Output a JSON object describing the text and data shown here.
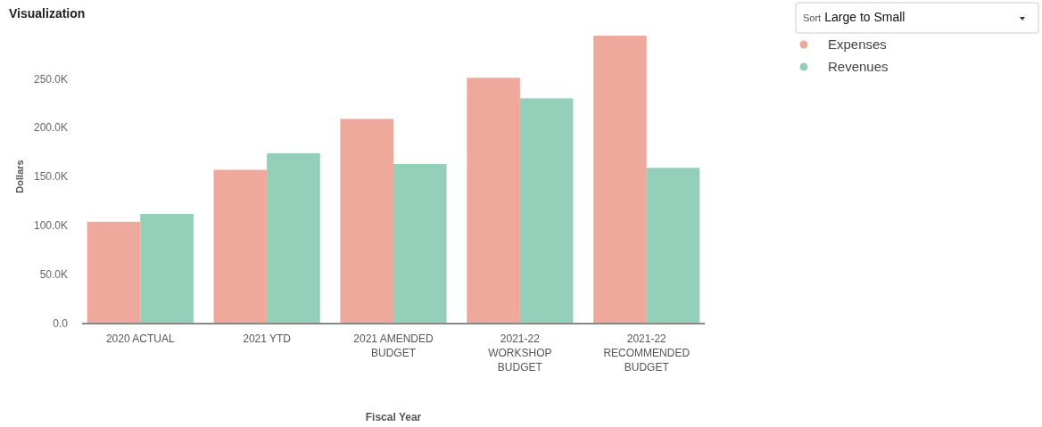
{
  "chart_data": {
    "type": "bar",
    "title": "Visualization",
    "xlabel": "Fiscal Year",
    "ylabel": "Dollars",
    "categories": [
      "2020 ACTUAL",
      "2021 YTD",
      "2021 AMENDED BUDGET",
      "2021-22 WORKSHOP BUDGET",
      "2021-22 RECOMMENDED BUDGET"
    ],
    "series": [
      {
        "name": "Expenses",
        "color": "#efa99c",
        "values": [
          104000,
          157000,
          209000,
          251000,
          294000
        ]
      },
      {
        "name": "Revenues",
        "color": "#94cfba",
        "values": [
          112000,
          174000,
          163000,
          230000,
          159000
        ]
      }
    ],
    "yticks": [
      {
        "value": 0,
        "label": "0.0"
      },
      {
        "value": 50000,
        "label": "50.0K"
      },
      {
        "value": 100000,
        "label": "100.0K"
      },
      {
        "value": 150000,
        "label": "150.0K"
      },
      {
        "value": 200000,
        "label": "200.0K"
      },
      {
        "value": 250000,
        "label": "250.0K"
      }
    ],
    "ylim": [
      0,
      294000
    ],
    "legend": "top right",
    "annotations": [
      "Sort",
      "Large to Small"
    ]
  }
}
